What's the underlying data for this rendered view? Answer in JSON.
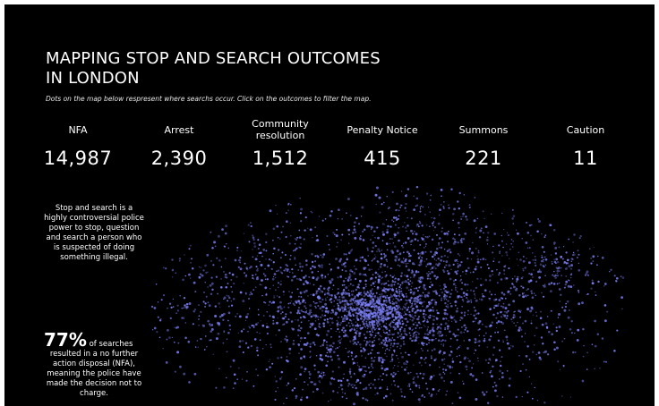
{
  "header": {
    "title_line1": "MAPPING STOP AND SEARCH OUTCOMES",
    "title_line2": "IN LONDON",
    "subtitle": "Dots on the map below respresent where searchs occur.  Click on the outcomes to filter the map."
  },
  "outcomes": [
    {
      "label_line1": "NFA",
      "label_line2": "",
      "value": "14,987"
    },
    {
      "label_line1": "Arrest",
      "label_line2": "",
      "value": "2,390"
    },
    {
      "label_line1": "Community",
      "label_line2": "resolution",
      "value": "1,512"
    },
    {
      "label_line1": "Penalty Notice",
      "label_line2": "",
      "value": "415"
    },
    {
      "label_line1": "Summons",
      "label_line2": "",
      "value": "221"
    },
    {
      "label_line1": "Caution",
      "label_line2": "",
      "value": "11"
    }
  ],
  "sidebar": {
    "description": "Stop and search is a highly controversial police power to stop, question and search a person who is suspected of doing something illegal.",
    "percent": "77%",
    "percent_text_1": "of searches",
    "percent_text_2": "resulted in a no further action disposal (NFA), meaning the police have made the decision not to charge."
  },
  "map": {
    "dot_color": "#7b7ff5",
    "background": "#000000"
  }
}
